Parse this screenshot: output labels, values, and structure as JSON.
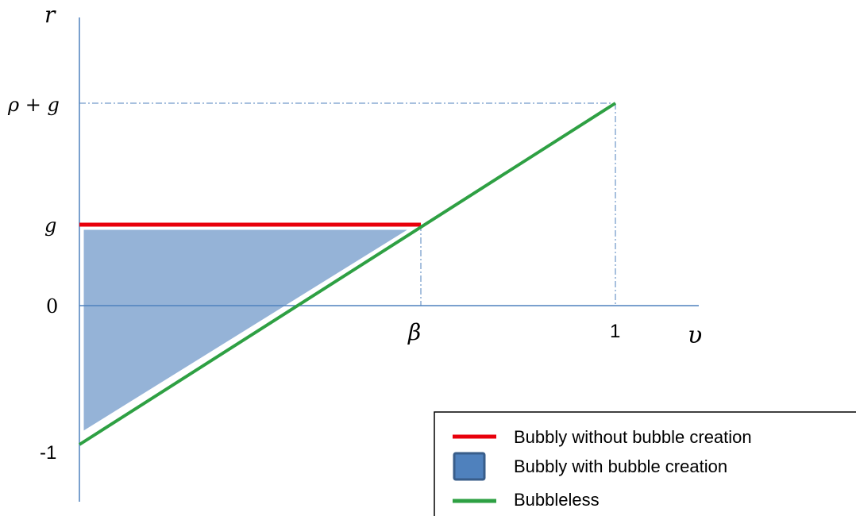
{
  "diagram": {
    "axis_labels": {
      "y_axis": "r",
      "x_axis": "υ"
    },
    "y_ticks": [
      "ρ + g",
      "g",
      "0",
      "-1"
    ],
    "x_ticks": [
      "β",
      "1"
    ],
    "legend": [
      {
        "label": "Bubbly without bubble creation",
        "color": "#e8000b",
        "kind": "line"
      },
      {
        "label": "Bubbly with bubble creation",
        "color": "#4f81bd",
        "kind": "box"
      },
      {
        "label": "Bubbleless",
        "color": "#2ea043",
        "kind": "line"
      }
    ],
    "colors": {
      "axis": "#4f81bd",
      "guide": "#4f81bd",
      "red_line": "#e8000b",
      "green_line": "#2ea043",
      "fill": "#95b3d7",
      "legend_box_fill": "#4f81bd",
      "legend_box_stroke": "#385d8a"
    }
  }
}
